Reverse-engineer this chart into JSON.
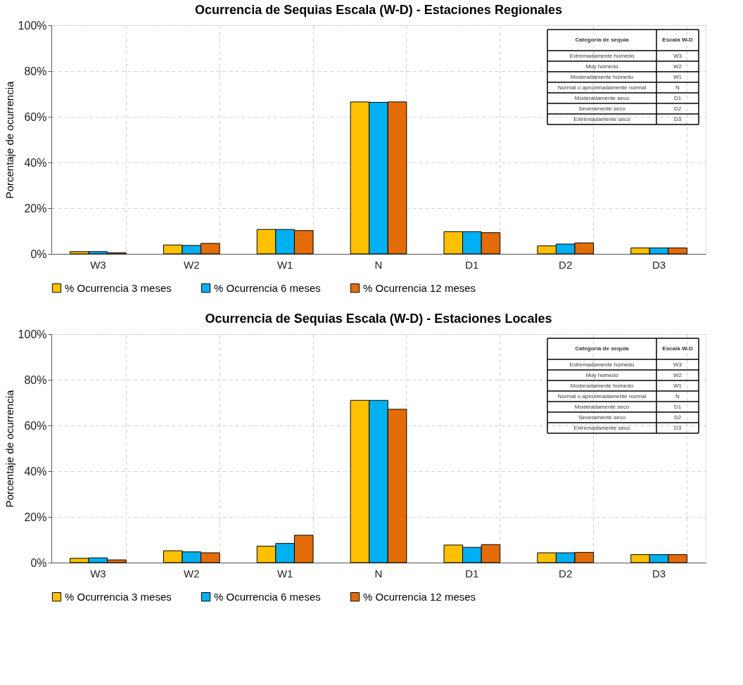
{
  "chart_data": [
    {
      "type": "bar",
      "title": "Ocurrencia de Sequias Escala (W-D) - Estaciones Regionales",
      "ylabel": "Porcentaje de ocurrencia",
      "categories": [
        "W3",
        "W2",
        "W1",
        "N",
        "D1",
        "D2",
        "D3"
      ],
      "series": [
        {
          "name": "% Ocurrencia 3 meses",
          "color": "#ffc000",
          "values": [
            1.0,
            3.9,
            10.7,
            66.5,
            9.7,
            3.5,
            2.6
          ]
        },
        {
          "name": "% Ocurrencia 6 meses",
          "color": "#00b0f0",
          "values": [
            1.0,
            3.7,
            10.7,
            66.3,
            9.7,
            4.3,
            2.6
          ]
        },
        {
          "name": "% Ocurrencia 12 meses",
          "color": "#e36c09",
          "values": [
            0.5,
            4.6,
            10.2,
            66.5,
            9.3,
            4.8,
            2.6
          ]
        }
      ],
      "ylim": [
        0,
        100
      ],
      "yticks": [
        {
          "value": 0,
          "label": "0%"
        },
        {
          "value": 20,
          "label": "20%"
        },
        {
          "value": 40,
          "label": "40%"
        },
        {
          "value": 60,
          "label": "60%"
        },
        {
          "value": 80,
          "label": "80%"
        },
        {
          "value": 100,
          "label": "100%"
        }
      ],
      "grid": true,
      "legend": "bottom",
      "annotations": [
        "Categoría de sequía",
        "Escala W-D",
        "Extremadamente húmedo",
        "W3",
        "Muy húmedo",
        "W2",
        "Moderadamente húmedo",
        "W1",
        "Normal o aproximadamente normal",
        "N",
        "Moderadamente seco",
        "D1",
        "Severamente seco",
        "D2",
        "Extremadamente seco",
        "D3"
      ]
    },
    {
      "type": "bar",
      "title": "Ocurrencia de Sequias Escala (W-D) - Estaciones  Locales",
      "ylabel": "Porcentaje de ocurrencia",
      "categories": [
        "W3",
        "W2",
        "W1",
        "N",
        "D1",
        "D2",
        "D3"
      ],
      "series": [
        {
          "name": "% Ocurrencia 3 meses",
          "color": "#ffc000",
          "values": [
            1.9,
            5.2,
            7.2,
            71.0,
            7.7,
            4.3,
            3.5
          ]
        },
        {
          "name": "% Ocurrencia 6 meses",
          "color": "#00b0f0",
          "values": [
            2.1,
            4.7,
            8.4,
            71.0,
            6.7,
            4.3,
            3.5
          ]
        },
        {
          "name": "% Ocurrencia 12 meses",
          "color": "#e36c09",
          "values": [
            1.2,
            4.3,
            12.0,
            67.1,
            7.9,
            4.5,
            3.5
          ]
        }
      ],
      "ylim": [
        0,
        100
      ],
      "yticks": [
        {
          "value": 0,
          "label": "0%"
        },
        {
          "value": 20,
          "label": "20%"
        },
        {
          "value": 40,
          "label": "40%"
        },
        {
          "value": 60,
          "label": "60%"
        },
        {
          "value": 80,
          "label": "80%"
        },
        {
          "value": 100,
          "label": "100%"
        }
      ],
      "grid": true,
      "legend": "bottom",
      "annotations": [
        "Categoría de sequía",
        "Escala W-D",
        "Extremadamente húmedo",
        "W3",
        "Muy húmedo",
        "W2",
        "Moderadamente húmedo",
        "W1",
        "Normal o aproximadamente normal",
        "N",
        "Moderadamente seco",
        "D1",
        "Severamente seco",
        "D2",
        "Extremadamente seco",
        "D3"
      ]
    }
  ]
}
